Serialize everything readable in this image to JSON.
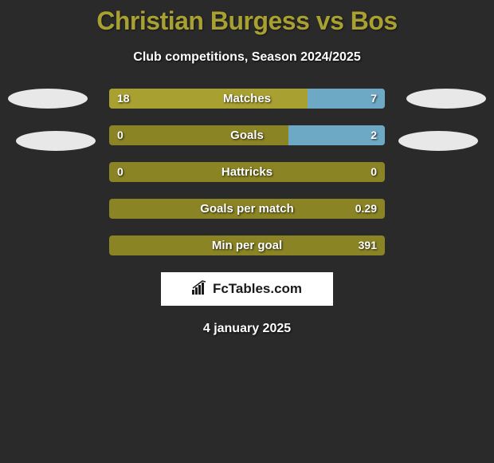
{
  "title": "Christian Burgess vs Bos",
  "subtitle": "Club competitions, Season 2024/2025",
  "colors": {
    "background": "#2a2a2a",
    "title_color": "#a8a030",
    "text_color": "#ffffff",
    "bar_left": "#a8a030",
    "bar_right": "#6da8c4",
    "bar_bg": "#8a8424",
    "ellipse": "#e8e8e8",
    "brand_bg": "#ffffff"
  },
  "stats": [
    {
      "label": "Matches",
      "left_value": "18",
      "right_value": "7",
      "left_pct": 72,
      "right_pct": 28
    },
    {
      "label": "Goals",
      "left_value": "0",
      "right_value": "2",
      "left_pct": 0,
      "right_pct": 35
    },
    {
      "label": "Hattricks",
      "left_value": "0",
      "right_value": "0",
      "left_pct": 0,
      "right_pct": 0
    },
    {
      "label": "Goals per match",
      "left_value": "",
      "right_value": "0.29",
      "left_pct": 0,
      "right_pct": 0
    },
    {
      "label": "Min per goal",
      "left_value": "",
      "right_value": "391",
      "left_pct": 0,
      "right_pct": 0
    }
  ],
  "brand": "FcTables.com",
  "date": "4 january 2025"
}
